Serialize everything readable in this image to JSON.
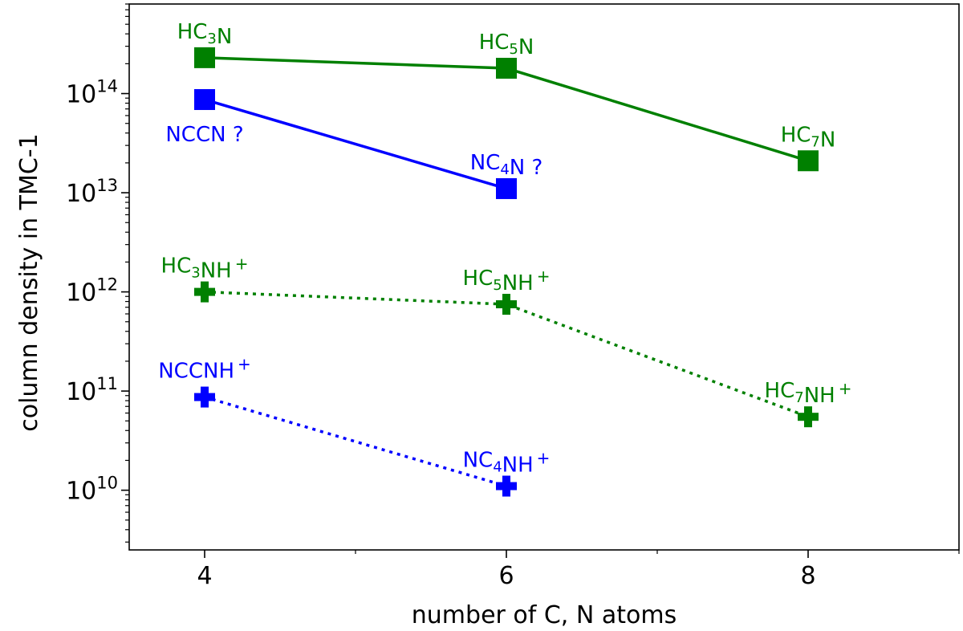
{
  "chart_data": {
    "type": "line",
    "xlabel": "number of C, N atoms",
    "ylabel": "column density in TMC-1",
    "x_ticks": [
      4,
      6,
      8
    ],
    "y_scale": "log",
    "y_tick_exponents": [
      10,
      11,
      12,
      13,
      14
    ],
    "y_tick_base": "10",
    "xlim": [
      3.5,
      9
    ],
    "ylim": [
      2500000000.0,
      800000000000000.0
    ],
    "grid": false,
    "series": [
      {
        "color": "#008000",
        "line": "solid",
        "marker": "square",
        "points": [
          {
            "x": 4,
            "y": 230000000000000.0,
            "label_parts": [
              [
                "HC",
                ""
              ],
              [
                "3",
                "sub"
              ],
              [
                "N",
                ""
              ]
            ],
            "label_pos": "above"
          },
          {
            "x": 6,
            "y": 180000000000000.0,
            "label_parts": [
              [
                "HC",
                ""
              ],
              [
                "5",
                "sub"
              ],
              [
                "N",
                ""
              ]
            ],
            "label_pos": "above"
          },
          {
            "x": 8,
            "y": 21000000000000.0,
            "label_parts": [
              [
                "HC",
                ""
              ],
              [
                "7",
                "sub"
              ],
              [
                "N",
                ""
              ]
            ],
            "label_pos": "above"
          }
        ]
      },
      {
        "color": "#0000ff",
        "line": "solid",
        "marker": "square",
        "points": [
          {
            "x": 4,
            "y": 87000000000000.0,
            "label_parts": [
              [
                "NCCN ?",
                ""
              ]
            ],
            "label_pos": "below"
          },
          {
            "x": 6,
            "y": 11000000000000.0,
            "label_parts": [
              [
                "NC",
                ""
              ],
              [
                "4",
                "sub"
              ],
              [
                "N ?",
                ""
              ]
            ],
            "label_pos": "above"
          }
        ]
      },
      {
        "color": "#008000",
        "line": "dotted",
        "marker": "plus",
        "points": [
          {
            "x": 4,
            "y": 1000000000000.0,
            "label_parts": [
              [
                "HC",
                ""
              ],
              [
                "3",
                "sub"
              ],
              [
                "NH",
                ""
              ],
              [
                "+",
                "sup"
              ]
            ],
            "label_pos": "above"
          },
          {
            "x": 6,
            "y": 750000000000.0,
            "label_parts": [
              [
                "HC",
                ""
              ],
              [
                "5",
                "sub"
              ],
              [
                "NH",
                ""
              ],
              [
                "+",
                "sup"
              ]
            ],
            "label_pos": "above"
          },
          {
            "x": 8,
            "y": 55000000000.0,
            "label_parts": [
              [
                "HC",
                ""
              ],
              [
                "7",
                "sub"
              ],
              [
                "NH",
                ""
              ],
              [
                "+",
                "sup"
              ]
            ],
            "label_pos": "above"
          }
        ]
      },
      {
        "color": "#0000ff",
        "line": "dotted",
        "marker": "plus",
        "points": [
          {
            "x": 4,
            "y": 87000000000.0,
            "label_parts": [
              [
                "NCCNH",
                ""
              ],
              [
                "+",
                "sup"
              ]
            ],
            "label_pos": "above"
          },
          {
            "x": 6,
            "y": 11000000000.0,
            "label_parts": [
              [
                "NC",
                ""
              ],
              [
                "4",
                "sub"
              ],
              [
                "NH",
                ""
              ],
              [
                "+",
                "sup"
              ]
            ],
            "label_pos": "above"
          }
        ]
      }
    ]
  }
}
